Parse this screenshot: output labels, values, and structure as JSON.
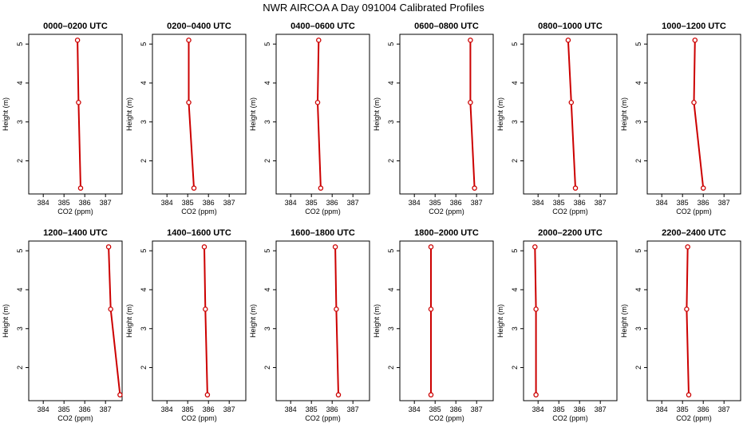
{
  "figure": {
    "title": "NWR AIRCOA A  Day 091004  Calibrated Profiles"
  },
  "colors": {
    "series": "#cc0000",
    "frame": "#000000",
    "background": "#ffffff"
  },
  "chart_data": [
    {
      "type": "line",
      "title": "0000–0200 UTC",
      "xlabel": "CO2 (ppm)",
      "ylabel": "Height (m)",
      "xlim": [
        383.3,
        387.8
      ],
      "ylim": [
        1.15,
        5.25
      ],
      "xticks": [
        "384",
        "385",
        "386",
        "387"
      ],
      "yticks": [
        "2",
        "3",
        "4",
        "5"
      ],
      "grid": false,
      "series": [
        {
          "x": [
            385.65,
            385.7,
            385.8
          ],
          "y": [
            5.1,
            3.5,
            1.3
          ]
        }
      ]
    },
    {
      "type": "line",
      "title": "0200–0400 UTC",
      "xlabel": "CO2 (ppm)",
      "ylabel": "Height (m)",
      "xlim": [
        383.3,
        387.8
      ],
      "ylim": [
        1.15,
        5.25
      ],
      "xticks": [
        "384",
        "385",
        "386",
        "387"
      ],
      "yticks": [
        "2",
        "3",
        "4",
        "5"
      ],
      "grid": false,
      "series": [
        {
          "x": [
            385.05,
            385.05,
            385.3
          ],
          "y": [
            5.1,
            3.5,
            1.3
          ]
        }
      ]
    },
    {
      "type": "line",
      "title": "0400–0600 UTC",
      "xlabel": "CO2 (ppm)",
      "ylabel": "Height (m)",
      "xlim": [
        383.3,
        387.8
      ],
      "ylim": [
        1.15,
        5.25
      ],
      "xticks": [
        "384",
        "385",
        "386",
        "387"
      ],
      "yticks": [
        "2",
        "3",
        "4",
        "5"
      ],
      "grid": false,
      "series": [
        {
          "x": [
            385.35,
            385.3,
            385.45
          ],
          "y": [
            5.1,
            3.5,
            1.3
          ]
        }
      ]
    },
    {
      "type": "line",
      "title": "0600–0800 UTC",
      "xlabel": "CO2 (ppm)",
      "ylabel": "Height (m)",
      "xlim": [
        383.3,
        387.8
      ],
      "ylim": [
        1.15,
        5.25
      ],
      "xticks": [
        "384",
        "385",
        "386",
        "387"
      ],
      "yticks": [
        "2",
        "3",
        "4",
        "5"
      ],
      "grid": false,
      "series": [
        {
          "x": [
            386.7,
            386.7,
            386.9
          ],
          "y": [
            5.1,
            3.5,
            1.3
          ]
        }
      ]
    },
    {
      "type": "line",
      "title": "0800–1000 UTC",
      "xlabel": "CO2 (ppm)",
      "ylabel": "Height (m)",
      "xlim": [
        383.3,
        387.8
      ],
      "ylim": [
        1.15,
        5.25
      ],
      "xticks": [
        "384",
        "385",
        "386",
        "387"
      ],
      "yticks": [
        "2",
        "3",
        "4",
        "5"
      ],
      "grid": false,
      "series": [
        {
          "x": [
            385.45,
            385.6,
            385.8
          ],
          "y": [
            5.1,
            3.5,
            1.3
          ]
        }
      ]
    },
    {
      "type": "line",
      "title": "1000–1200 UTC",
      "xlabel": "CO2 (ppm)",
      "ylabel": "Height (m)",
      "xlim": [
        383.3,
        387.8
      ],
      "ylim": [
        1.15,
        5.25
      ],
      "xticks": [
        "384",
        "385",
        "386",
        "387"
      ],
      "yticks": [
        "2",
        "3",
        "4",
        "5"
      ],
      "grid": false,
      "series": [
        {
          "x": [
            385.6,
            385.55,
            386.0
          ],
          "y": [
            5.1,
            3.5,
            1.3
          ]
        }
      ]
    },
    {
      "type": "line",
      "title": "1200–1400 UTC",
      "xlabel": "CO2 (ppm)",
      "ylabel": "Height (m)",
      "xlim": [
        383.3,
        387.8
      ],
      "ylim": [
        1.15,
        5.25
      ],
      "xticks": [
        "384",
        "385",
        "386",
        "387"
      ],
      "yticks": [
        "2",
        "3",
        "4",
        "5"
      ],
      "grid": false,
      "series": [
        {
          "x": [
            387.15,
            387.25,
            387.7
          ],
          "y": [
            5.1,
            3.5,
            1.3
          ]
        }
      ]
    },
    {
      "type": "line",
      "title": "1400–1600 UTC",
      "xlabel": "CO2 (ppm)",
      "ylabel": "Height (m)",
      "xlim": [
        383.3,
        387.8
      ],
      "ylim": [
        1.15,
        5.25
      ],
      "xticks": [
        "384",
        "385",
        "386",
        "387"
      ],
      "yticks": [
        "2",
        "3",
        "4",
        "5"
      ],
      "grid": false,
      "series": [
        {
          "x": [
            385.8,
            385.85,
            385.95
          ],
          "y": [
            5.1,
            3.5,
            1.3
          ]
        }
      ]
    },
    {
      "type": "line",
      "title": "1600–1800 UTC",
      "xlabel": "CO2 (ppm)",
      "ylabel": "Height (m)",
      "xlim": [
        383.3,
        387.8
      ],
      "ylim": [
        1.15,
        5.25
      ],
      "xticks": [
        "384",
        "385",
        "386",
        "387"
      ],
      "yticks": [
        "2",
        "3",
        "4",
        "5"
      ],
      "grid": false,
      "series": [
        {
          "x": [
            386.15,
            386.2,
            386.3
          ],
          "y": [
            5.1,
            3.5,
            1.3
          ]
        }
      ]
    },
    {
      "type": "line",
      "title": "1800–2000 UTC",
      "xlabel": "CO2 (ppm)",
      "ylabel": "Height (m)",
      "xlim": [
        383.3,
        387.8
      ],
      "ylim": [
        1.15,
        5.25
      ],
      "xticks": [
        "384",
        "385",
        "386",
        "387"
      ],
      "yticks": [
        "2",
        "3",
        "4",
        "5"
      ],
      "grid": false,
      "series": [
        {
          "x": [
            384.8,
            384.8,
            384.8
          ],
          "y": [
            5.1,
            3.5,
            1.3
          ]
        }
      ]
    },
    {
      "type": "line",
      "title": "2000–2200 UTC",
      "xlabel": "CO2 (ppm)",
      "ylabel": "Height (m)",
      "xlim": [
        383.3,
        387.8
      ],
      "ylim": [
        1.15,
        5.25
      ],
      "xticks": [
        "384",
        "385",
        "386",
        "387"
      ],
      "yticks": [
        "2",
        "3",
        "4",
        "5"
      ],
      "grid": false,
      "series": [
        {
          "x": [
            383.85,
            383.9,
            383.9
          ],
          "y": [
            5.1,
            3.5,
            1.3
          ]
        }
      ]
    },
    {
      "type": "line",
      "title": "2200–2400 UTC",
      "xlabel": "CO2 (ppm)",
      "ylabel": "Height (m)",
      "xlim": [
        383.3,
        387.8
      ],
      "ylim": [
        1.15,
        5.25
      ],
      "xticks": [
        "384",
        "385",
        "386",
        "387"
      ],
      "yticks": [
        "2",
        "3",
        "4",
        "5"
      ],
      "grid": false,
      "series": [
        {
          "x": [
            385.25,
            385.2,
            385.3
          ],
          "y": [
            5.1,
            3.5,
            1.3
          ]
        }
      ]
    }
  ]
}
